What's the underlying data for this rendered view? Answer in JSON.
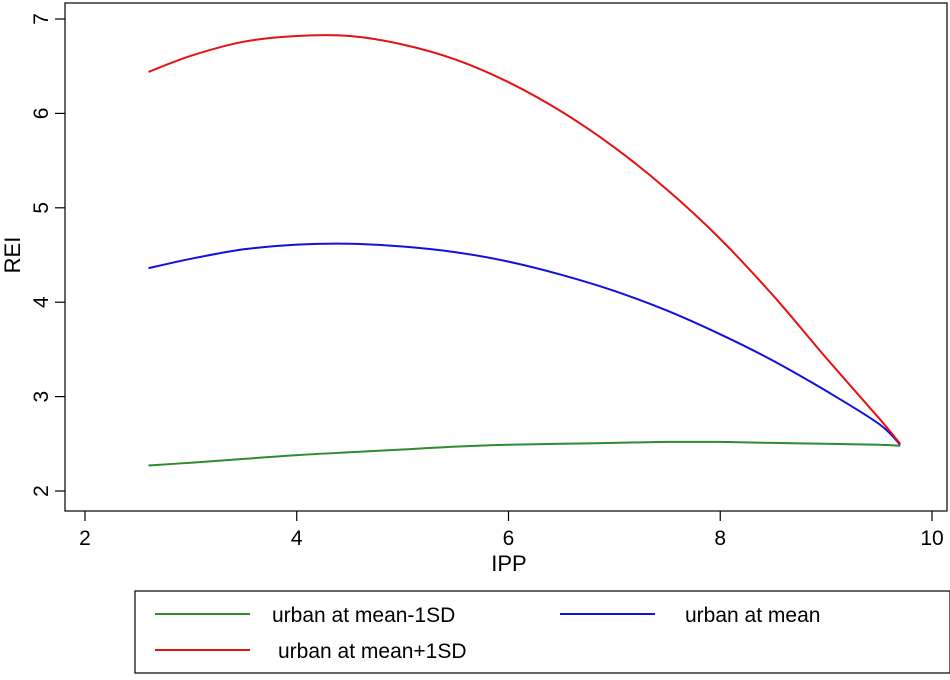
{
  "chart_data": {
    "type": "line",
    "xlabel": "IPP",
    "ylabel": "REI",
    "xlim": [
      2,
      10
    ],
    "ylim": [
      2,
      7
    ],
    "x_ticks": [
      2,
      4,
      6,
      8,
      10
    ],
    "y_ticks": [
      2,
      3,
      4,
      5,
      6,
      7
    ],
    "grid": false,
    "legend_position": "bottom",
    "series": [
      {
        "name": "urban at mean-1SD",
        "color": "#2e8b2e",
        "x": [
          2.6,
          3.0,
          3.5,
          4.0,
          4.5,
          5.0,
          5.5,
          6.0,
          6.5,
          7.0,
          7.5,
          8.0,
          8.5,
          9.0,
          9.5,
          9.7
        ],
        "y": [
          2.27,
          2.3,
          2.34,
          2.38,
          2.41,
          2.44,
          2.47,
          2.49,
          2.5,
          2.51,
          2.52,
          2.52,
          2.51,
          2.5,
          2.49,
          2.48
        ]
      },
      {
        "name": "urban at mean",
        "color": "#1010e0",
        "x": [
          2.6,
          3.0,
          3.5,
          4.0,
          4.5,
          5.0,
          5.5,
          6.0,
          6.5,
          7.0,
          7.5,
          8.0,
          8.5,
          9.0,
          9.5,
          9.7
        ],
        "y": [
          4.36,
          4.46,
          4.56,
          4.61,
          4.62,
          4.59,
          4.53,
          4.43,
          4.29,
          4.12,
          3.91,
          3.66,
          3.38,
          3.06,
          2.71,
          2.49
        ]
      },
      {
        "name": "urban at mean+1SD",
        "color": "#e81010",
        "x": [
          2.6,
          3.0,
          3.5,
          4.0,
          4.5,
          5.0,
          5.5,
          6.0,
          6.5,
          7.0,
          7.5,
          8.0,
          8.5,
          9.0,
          9.5,
          9.7
        ],
        "y": [
          6.44,
          6.61,
          6.76,
          6.82,
          6.82,
          6.73,
          6.57,
          6.33,
          6.02,
          5.64,
          5.19,
          4.67,
          4.07,
          3.41,
          2.77,
          2.5
        ]
      }
    ]
  }
}
